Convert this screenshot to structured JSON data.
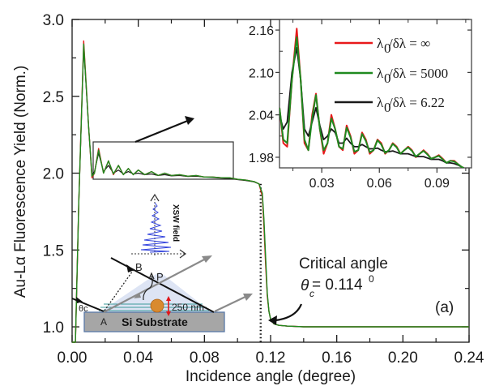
{
  "chart_data": {
    "type": "line",
    "xlabel": "Incidence angle (degree)",
    "ylabel": "Au-Lα Fluorescence Yield (Norm.)",
    "xlim": [
      0.0,
      0.24
    ],
    "ylim": [
      0.9,
      3.0
    ],
    "xticks": [
      "0.00",
      "0.04",
      "0.08",
      "0.12",
      "0.16",
      "0.20",
      "0.24"
    ],
    "yticks": [
      "1.0",
      "1.5",
      "2.0",
      "2.5",
      "3.0"
    ],
    "panel_label": "(a)",
    "series": [
      {
        "name": "λ0/δλ = ∞",
        "color": "#e8191b",
        "x": [
          0.0,
          0.002,
          0.004,
          0.007,
          0.01,
          0.012,
          0.0135,
          0.016,
          0.019,
          0.022,
          0.025,
          0.028,
          0.031,
          0.034,
          0.037,
          0.04,
          0.044,
          0.048,
          0.052,
          0.056,
          0.06,
          0.065,
          0.07,
          0.075,
          0.08,
          0.085,
          0.09,
          0.095,
          0.1,
          0.105,
          0.11,
          0.113,
          0.115,
          0.116,
          0.117,
          0.118,
          0.119,
          0.12,
          0.122,
          0.125,
          0.13,
          0.14,
          0.16,
          0.18,
          0.2,
          0.22,
          0.24
        ],
        "y": [
          0.9,
          0.9,
          1.8,
          2.86,
          2.3,
          1.97,
          2.0,
          2.16,
          2.0,
          2.08,
          1.99,
          2.05,
          1.99,
          2.03,
          1.99,
          2.02,
          1.99,
          2.01,
          1.985,
          2.0,
          1.985,
          1.99,
          1.98,
          1.985,
          1.975,
          1.975,
          1.97,
          1.97,
          1.96,
          1.955,
          1.945,
          1.93,
          1.85,
          1.65,
          1.4,
          1.2,
          1.1,
          1.05,
          1.02,
          1.01,
          1.005,
          1.0,
          1.0,
          1.0,
          1.0,
          1.0,
          1.0
        ]
      },
      {
        "name": "λ0/δλ = 5000",
        "color": "#1f8a1f",
        "x": [
          0.0,
          0.002,
          0.004,
          0.007,
          0.01,
          0.012,
          0.0135,
          0.016,
          0.019,
          0.022,
          0.025,
          0.028,
          0.031,
          0.034,
          0.037,
          0.04,
          0.044,
          0.048,
          0.052,
          0.056,
          0.06,
          0.065,
          0.07,
          0.075,
          0.08,
          0.085,
          0.09,
          0.095,
          0.1,
          0.105,
          0.11,
          0.113,
          0.115,
          0.116,
          0.117,
          0.118,
          0.119,
          0.12,
          0.122,
          0.125,
          0.13,
          0.14,
          0.16,
          0.18,
          0.2,
          0.22,
          0.24
        ],
        "y": [
          0.9,
          0.9,
          1.8,
          2.84,
          2.3,
          1.98,
          2.0,
          2.15,
          2.0,
          2.08,
          1.995,
          2.05,
          1.99,
          2.03,
          1.99,
          2.02,
          1.99,
          2.01,
          1.985,
          2.0,
          1.985,
          1.99,
          1.98,
          1.985,
          1.975,
          1.975,
          1.97,
          1.97,
          1.96,
          1.955,
          1.945,
          1.93,
          1.87,
          1.7,
          1.45,
          1.22,
          1.1,
          1.05,
          1.02,
          1.01,
          1.005,
          1.0,
          1.0,
          1.0,
          1.0,
          1.0,
          1.0
        ]
      },
      {
        "name": "λ0/δλ = 6.22",
        "color": "#1a1a1a",
        "x": [
          0.0,
          0.002,
          0.004,
          0.007,
          0.01,
          0.012,
          0.0135,
          0.016,
          0.019,
          0.022,
          0.025,
          0.028,
          0.031,
          0.034,
          0.037,
          0.04,
          0.044,
          0.048,
          0.052,
          0.056,
          0.06,
          0.065,
          0.07,
          0.075,
          0.08,
          0.085,
          0.09,
          0.095,
          0.1,
          0.105,
          0.11,
          0.113,
          0.115,
          0.116,
          0.117,
          0.118,
          0.119,
          0.12,
          0.122,
          0.125,
          0.13,
          0.14,
          0.16,
          0.18,
          0.2,
          0.22,
          0.24
        ],
        "y": [
          0.9,
          0.9,
          1.8,
          2.82,
          2.3,
          1.99,
          2.01,
          2.13,
          2.01,
          2.05,
          2.0,
          2.02,
          1.995,
          2.01,
          1.995,
          2.0,
          1.99,
          1.995,
          1.985,
          1.99,
          1.982,
          1.985,
          1.978,
          1.98,
          1.975,
          1.972,
          1.968,
          1.965,
          1.958,
          1.952,
          1.943,
          1.93,
          1.86,
          1.68,
          1.43,
          1.21,
          1.1,
          1.05,
          1.02,
          1.01,
          1.005,
          1.0,
          1.0,
          1.0,
          1.0,
          1.0,
          1.0
        ]
      }
    ],
    "inset": {
      "xlim": [
        0.008,
        0.108
      ],
      "ylim": [
        1.965,
        2.175
      ],
      "xticks": [
        "0.03",
        "0.06",
        "0.09"
      ],
      "yticks": [
        "1.98",
        "2.04",
        "2.10",
        "2.16"
      ],
      "legend": [
        "λ0/δλ = ∞",
        "λ0/δλ = 5000",
        "λ0/δλ = 6.22"
      ],
      "legend_placement": "top-right",
      "series": [
        {
          "name": "λ0/δλ = ∞",
          "color": "#e8191b",
          "x": [
            0.008,
            0.01,
            0.012,
            0.0145,
            0.017,
            0.019,
            0.021,
            0.023,
            0.025,
            0.027,
            0.029,
            0.031,
            0.033,
            0.035,
            0.037,
            0.039,
            0.041,
            0.043,
            0.045,
            0.047,
            0.049,
            0.051,
            0.053,
            0.055,
            0.057,
            0.059,
            0.061,
            0.063,
            0.065,
            0.067,
            0.069,
            0.071,
            0.073,
            0.075,
            0.077,
            0.079,
            0.081,
            0.083,
            0.085,
            0.087,
            0.089,
            0.091,
            0.093,
            0.095,
            0.097,
            0.099,
            0.101,
            0.103,
            0.104
          ],
          "y": [
            2.05,
            2.0,
            1.995,
            2.09,
            2.162,
            2.09,
            2.0,
            1.99,
            2.04,
            2.07,
            2.02,
            1.985,
            2.0,
            2.04,
            2.02,
            1.995,
            1.99,
            2.025,
            2.01,
            1.985,
            1.99,
            2.015,
            2.005,
            1.985,
            1.99,
            2.005,
            2.0,
            1.985,
            1.99,
            2.0,
            1.995,
            1.985,
            1.99,
            1.995,
            1.99,
            1.98,
            1.985,
            1.99,
            1.985,
            1.978,
            1.98,
            1.983,
            1.978,
            1.972,
            1.975,
            1.975,
            1.97,
            1.966,
            1.965
          ]
        },
        {
          "name": "λ0/δλ = 5000",
          "color": "#1f8a1f",
          "x": [
            0.008,
            0.01,
            0.012,
            0.0145,
            0.017,
            0.019,
            0.021,
            0.023,
            0.025,
            0.027,
            0.029,
            0.031,
            0.033,
            0.035,
            0.037,
            0.039,
            0.041,
            0.043,
            0.045,
            0.047,
            0.049,
            0.051,
            0.053,
            0.055,
            0.057,
            0.059,
            0.061,
            0.063,
            0.065,
            0.067,
            0.069,
            0.071,
            0.073,
            0.075,
            0.077,
            0.079,
            0.081,
            0.083,
            0.085,
            0.087,
            0.089,
            0.091,
            0.093,
            0.095,
            0.097,
            0.099,
            0.101,
            0.103,
            0.104
          ],
          "y": [
            2.05,
            2.005,
            2.0,
            2.09,
            2.15,
            2.09,
            2.005,
            1.99,
            2.035,
            2.068,
            2.02,
            1.99,
            2.0,
            2.035,
            2.02,
            1.995,
            1.992,
            2.022,
            2.008,
            1.988,
            1.99,
            2.013,
            2.003,
            1.987,
            1.99,
            2.004,
            1.998,
            1.986,
            1.99,
            1.999,
            1.994,
            1.985,
            1.99,
            1.994,
            1.989,
            1.981,
            1.985,
            1.989,
            1.984,
            1.978,
            1.98,
            1.982,
            1.977,
            1.972,
            1.975,
            1.974,
            1.97,
            1.966,
            1.965
          ]
        },
        {
          "name": "λ0/δλ = 6.22",
          "color": "#1a1a1a",
          "x": [
            0.008,
            0.01,
            0.012,
            0.0145,
            0.017,
            0.019,
            0.021,
            0.023,
            0.025,
            0.027,
            0.029,
            0.031,
            0.033,
            0.035,
            0.037,
            0.039,
            0.041,
            0.043,
            0.045,
            0.047,
            0.049,
            0.051,
            0.053,
            0.055,
            0.057,
            0.059,
            0.061,
            0.063,
            0.065,
            0.067,
            0.069,
            0.071,
            0.073,
            0.075,
            0.077,
            0.079,
            0.081,
            0.083,
            0.085,
            0.087,
            0.089,
            0.091,
            0.093,
            0.095,
            0.097,
            0.099,
            0.101,
            0.103,
            0.104
          ],
          "y": [
            2.04,
            2.02,
            2.03,
            2.1,
            2.135,
            2.09,
            2.02,
            2.01,
            2.03,
            2.05,
            2.025,
            2.005,
            2.01,
            2.02,
            2.015,
            2.0,
            2.0,
            2.007,
            2.0,
            1.995,
            1.995,
            1.998,
            1.995,
            1.992,
            1.992,
            1.993,
            1.99,
            1.988,
            1.988,
            1.989,
            1.987,
            1.985,
            1.985,
            1.985,
            1.983,
            1.981,
            1.981,
            1.981,
            1.979,
            1.977,
            1.977,
            1.977,
            1.975,
            1.972,
            1.972,
            1.971,
            1.969,
            1.966,
            1.965
          ]
        }
      ]
    },
    "annotations": {
      "critical_angle_label": "Critical angle",
      "critical_angle_value": "= 0.114",
      "critical_angle_symbol": "θ",
      "critical_angle_subscript": "c",
      "critical_angle_superscript": "0",
      "critical_angle_x": 0.114
    }
  },
  "schematic": {
    "substrate_label": "Si Substrate",
    "thickness_label": "250 nm",
    "point_a": "A",
    "point_b": "B",
    "point_p": "P",
    "theta_label": "θc",
    "field_label": "XSW field"
  },
  "legend_prefix": "λ",
  "legend_sub": "0",
  "legend_rest": [
    "/δλ = ∞",
    "/δλ = 5000",
    "/δλ = 6.22"
  ]
}
